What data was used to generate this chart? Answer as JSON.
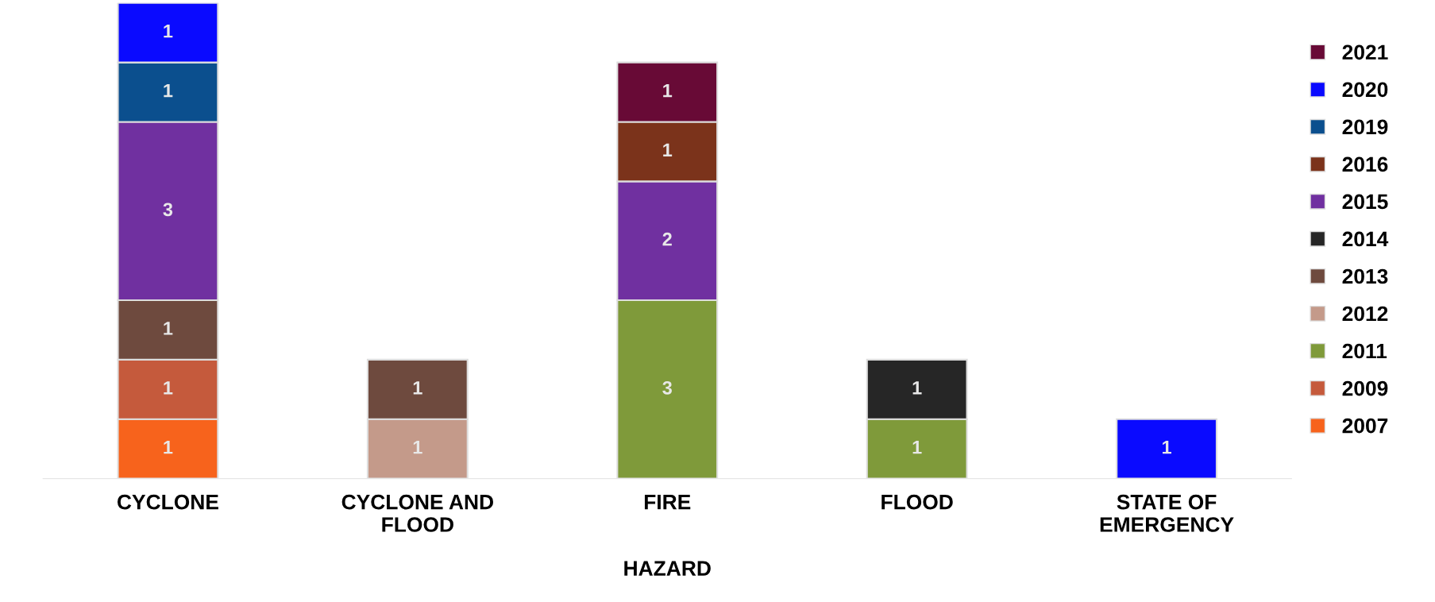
{
  "chart_data": {
    "type": "bar",
    "stacked": true,
    "data_labels": true,
    "legend": "right",
    "grid": false,
    "xlabel": "HAZARD",
    "categories": [
      "CYCLONE",
      "CYCLONE AND\nFLOOD",
      "FIRE",
      "FLOOD",
      "STATE OF\nEMERGENCY"
    ],
    "series": [
      {
        "name": "2007",
        "color": "#f7631c",
        "values": [
          1,
          null,
          null,
          null,
          null
        ]
      },
      {
        "name": "2009",
        "color": "#c55a3c",
        "values": [
          1,
          null,
          null,
          null,
          null
        ]
      },
      {
        "name": "2011",
        "color": "#7f9a3a",
        "values": [
          null,
          null,
          3,
          1,
          null
        ]
      },
      {
        "name": "2012",
        "color": "#c49a8a",
        "values": [
          null,
          1,
          null,
          null,
          null
        ]
      },
      {
        "name": "2013",
        "color": "#6e4a3e",
        "values": [
          1,
          1,
          null,
          null,
          null
        ]
      },
      {
        "name": "2014",
        "color": "#262626",
        "values": [
          null,
          null,
          null,
          1,
          null
        ]
      },
      {
        "name": "2015",
        "color": "#7030a0",
        "values": [
          3,
          null,
          2,
          null,
          null
        ]
      },
      {
        "name": "2016",
        "color": "#7b331b",
        "values": [
          null,
          null,
          1,
          null,
          null
        ]
      },
      {
        "name": "2019",
        "color": "#0b4f8e",
        "values": [
          1,
          null,
          null,
          null,
          null
        ]
      },
      {
        "name": "2020",
        "color": "#0a0aff",
        "values": [
          1,
          null,
          null,
          null,
          1
        ]
      },
      {
        "name": "2021",
        "color": "#680a36",
        "values": [
          null,
          null,
          1,
          null,
          null
        ]
      }
    ]
  }
}
